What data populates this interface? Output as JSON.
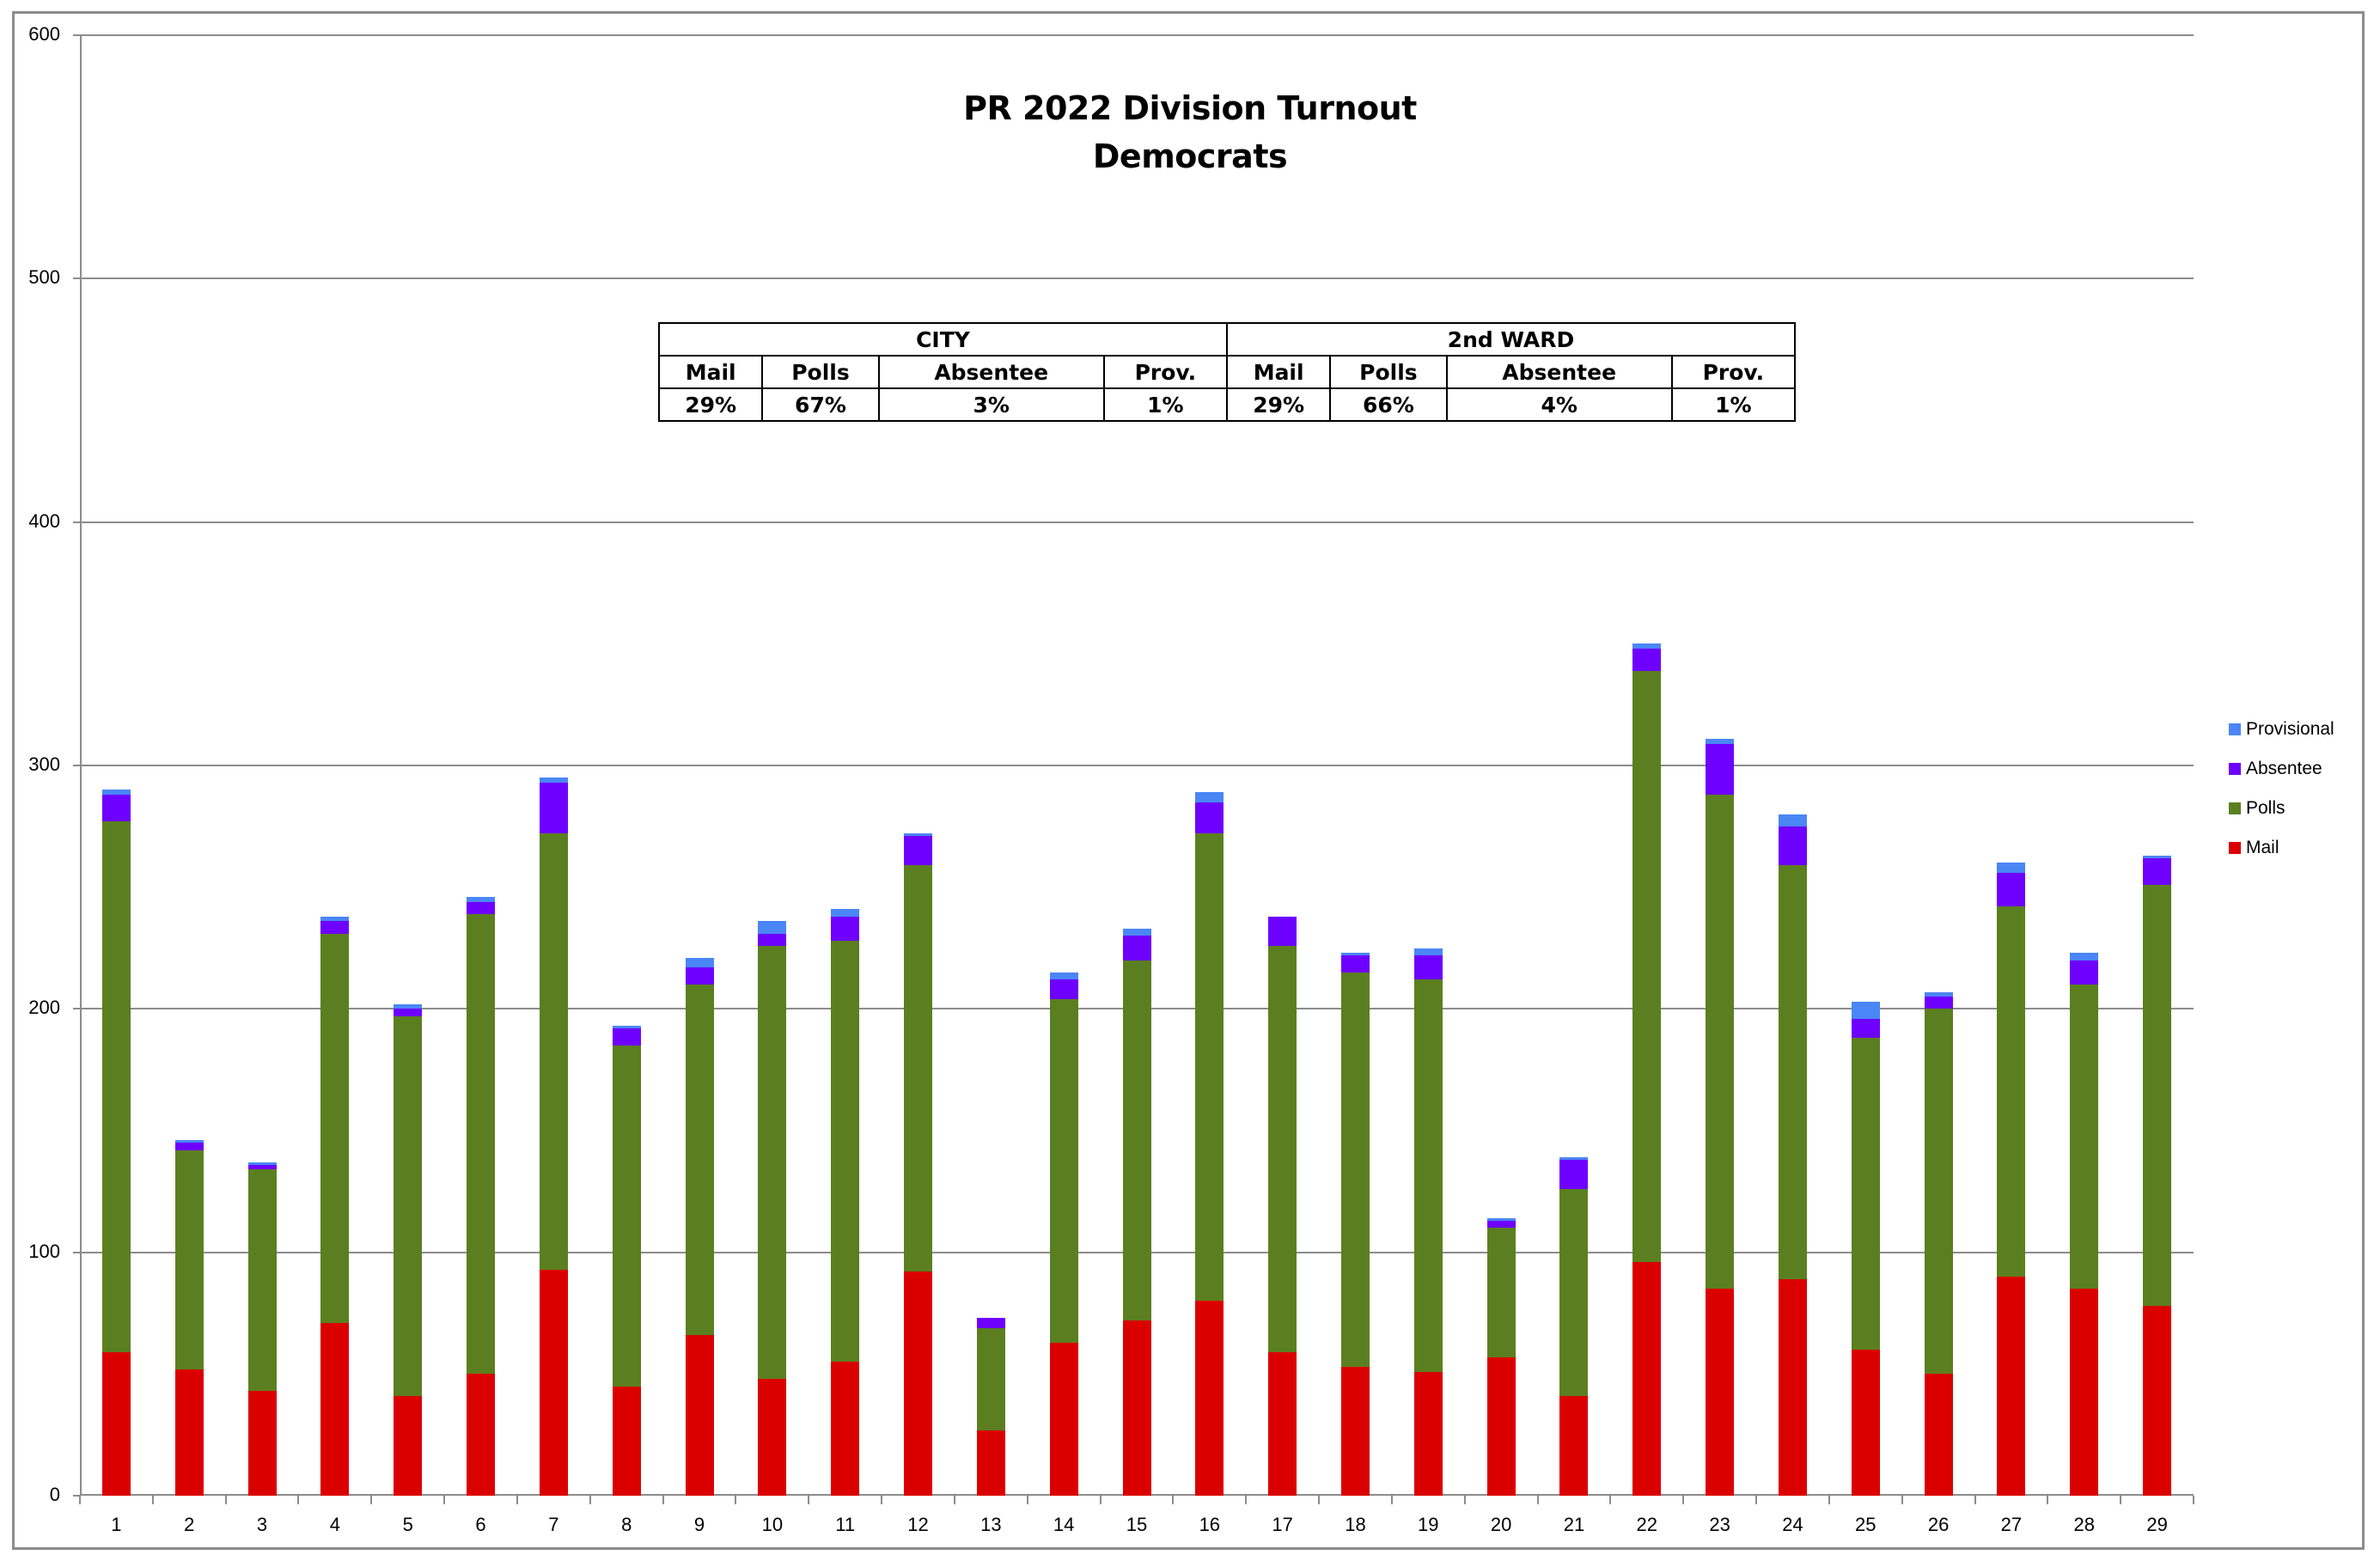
{
  "chart_data": {
    "type": "bar",
    "stacked": true,
    "title": "PR 2022 Division Turnout",
    "subtitle": "Democrats",
    "xlabel": "",
    "ylabel": "",
    "ylim": [
      0,
      600
    ],
    "yticks": [
      0,
      100,
      200,
      300,
      400,
      500,
      600
    ],
    "grid": true,
    "legend_position": "right",
    "categories": [
      "1",
      "2",
      "3",
      "4",
      "5",
      "6",
      "7",
      "8",
      "9",
      "10",
      "11",
      "12",
      "13",
      "14",
      "15",
      "16",
      "17",
      "18",
      "19",
      "20",
      "21",
      "22",
      "23",
      "24",
      "25",
      "26",
      "27",
      "28",
      "29"
    ],
    "series": [
      {
        "name": "Mail",
        "color": "#db0000",
        "values": [
          59,
          52,
          43,
          71,
          41,
          50,
          93,
          45,
          66,
          48,
          55,
          92,
          27,
          63,
          72,
          80,
          59,
          53,
          51,
          57,
          41,
          96,
          85,
          89,
          60,
          50,
          90,
          85,
          78
        ]
      },
      {
        "name": "Polls",
        "color": "#5b7f20",
        "values": [
          218,
          90,
          91,
          160,
          156,
          189,
          179,
          140,
          144,
          178,
          173,
          167,
          42,
          141,
          148,
          192,
          167,
          162,
          161,
          53,
          85,
          243,
          203,
          170,
          128,
          150,
          152,
          125,
          173
        ]
      },
      {
        "name": "Absentee",
        "color": "#6e00ff",
        "values": [
          11,
          3,
          2,
          5,
          3,
          5,
          21,
          7,
          7,
          5,
          10,
          12,
          4,
          8,
          10,
          13,
          12,
          7,
          10,
          3,
          12,
          9,
          21,
          16,
          8,
          5,
          14,
          10,
          11
        ]
      },
      {
        "name": "Provisional",
        "color": "#4a86f5",
        "values": [
          2,
          1,
          1,
          2,
          2,
          2,
          2,
          1,
          4,
          5,
          3,
          1,
          0,
          3,
          3,
          4,
          0,
          1,
          3,
          1,
          1,
          2,
          2,
          5,
          7,
          2,
          4,
          3,
          1
        ]
      }
    ]
  },
  "title": {
    "line1": "PR 2022 Division Turnout",
    "line2": "Democrats"
  },
  "summary_table": {
    "groups": [
      "CITY",
      "2nd WARD"
    ],
    "headers": [
      "Mail",
      "Polls",
      "Absentee",
      "Prov.",
      "Mail",
      "Polls",
      "Absentee",
      "Prov."
    ],
    "values": [
      "29%",
      "67%",
      "3%",
      "1%",
      "29%",
      "66%",
      "4%",
      "1%"
    ]
  },
  "legend": [
    {
      "label": "Provisional",
      "color": "#4a86f5"
    },
    {
      "label": "Absentee",
      "color": "#6e00ff"
    },
    {
      "label": "Polls",
      "color": "#5b7f20"
    },
    {
      "label": "Mail",
      "color": "#db0000"
    }
  ]
}
